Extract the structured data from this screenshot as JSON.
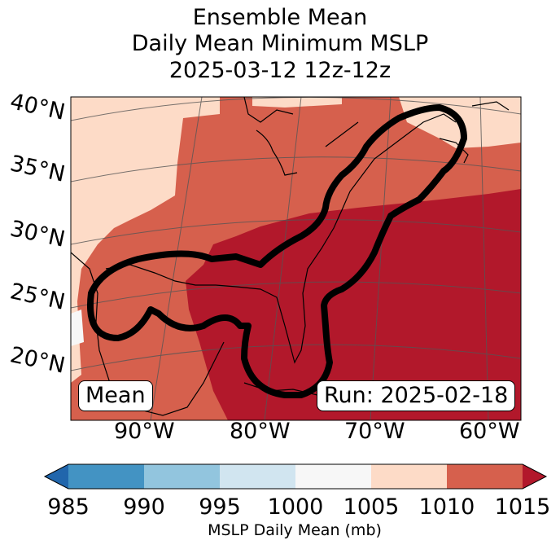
{
  "title": {
    "line1": "Ensemble Mean",
    "line2": "Daily Mean Minimum MSLP",
    "line3": "2025-03-12 12z-12z"
  },
  "latitude_labels": [
    "40°N",
    "35°N",
    "30°N",
    "25°N",
    "20°N"
  ],
  "longitude_labels": [
    "90°W",
    "80°W",
    "70°W",
    "60°W"
  ],
  "boxes": {
    "left": "Mean",
    "right": "Run: 2025-02-18"
  },
  "colorbar": {
    "ticks": [
      "985",
      "990",
      "995",
      "1000",
      "1005",
      "1010",
      "1015"
    ],
    "label": "MSLP Daily Mean (mb)",
    "colors": [
      "#2166ac",
      "#4393c3",
      "#92c5de",
      "#d1e5f0",
      "#f7f7f7",
      "#fddbc7",
      "#d6604d",
      "#b2182b"
    ]
  },
  "map_colors": {
    "c1010": "#d6604d",
    "c1015": "#b2182b",
    "c1005": "#fddbc7",
    "c1000": "#f7f7f7",
    "contour": "#000000"
  }
}
